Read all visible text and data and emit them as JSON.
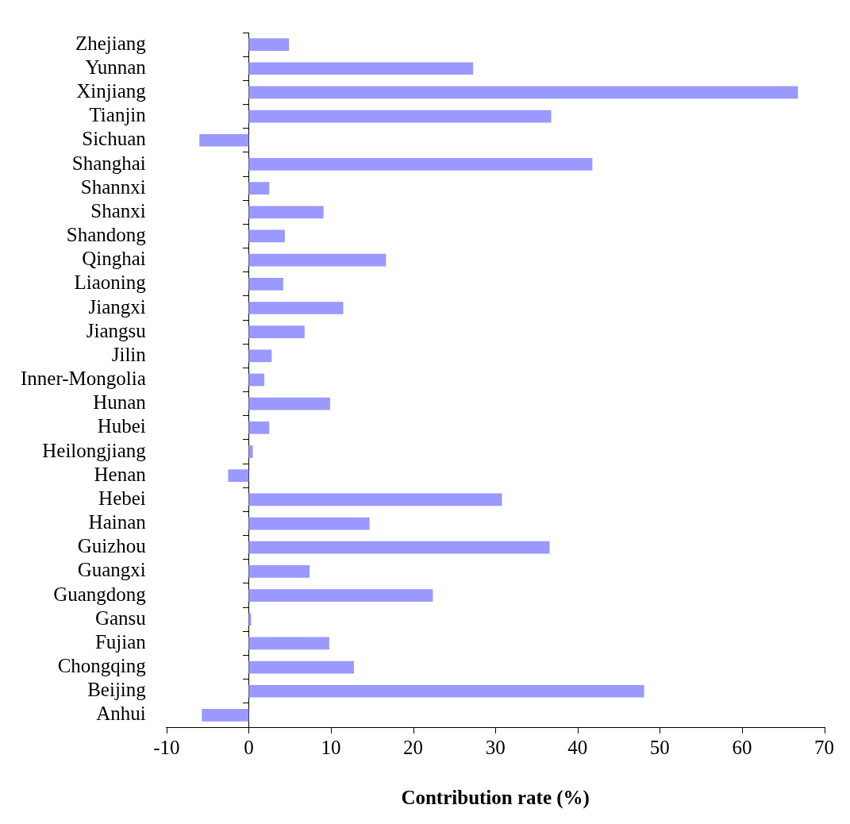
{
  "chart_data": {
    "type": "bar",
    "orientation": "horizontal",
    "xlabel": "Contribution rate (%)",
    "categories": [
      "Zhejiang",
      "Yunnan",
      "Xinjiang",
      "Tianjin",
      "Sichuan",
      "Shanghai",
      "Shannxi",
      "Shanxi",
      "Shandong",
      "Qinghai",
      "Liaoning",
      "Jiangxi",
      "Jiangsu",
      "Jilin",
      "Inner-Mongolia",
      "Hunan",
      "Hubei",
      "Heilongjiang",
      "Henan",
      "Hebei",
      "Hainan",
      "Guizhou",
      "Guangxi",
      "Guangdong",
      "Gansu",
      "Fujian",
      "Chongqing",
      "Beijing",
      "Anhui"
    ],
    "values": [
      4.9,
      27.3,
      66.8,
      36.8,
      -6.0,
      41.8,
      2.5,
      9.1,
      4.4,
      16.7,
      4.2,
      11.5,
      6.8,
      2.8,
      1.9,
      9.9,
      2.5,
      0.5,
      -2.5,
      30.8,
      14.7,
      36.6,
      7.4,
      22.4,
      0.3,
      9.8,
      12.8,
      48.1,
      -5.7
    ],
    "color": "#9999ff",
    "xlim": [
      -10,
      70
    ],
    "xticks": [
      -10,
      0,
      10,
      20,
      30,
      40,
      50,
      60,
      70
    ],
    "legend": false
  }
}
